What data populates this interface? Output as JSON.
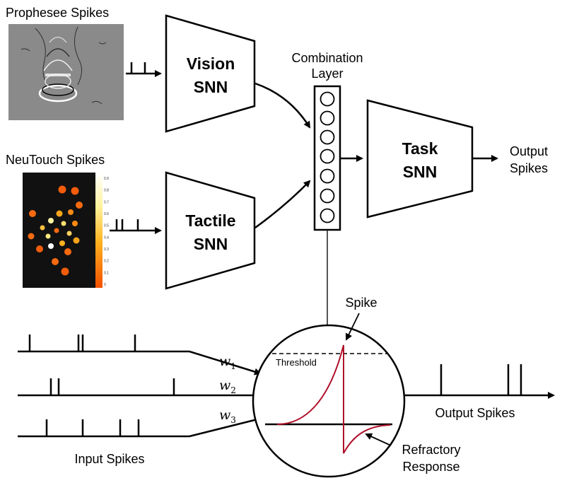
{
  "top": {
    "prophesee_label": "Prophesee Spikes",
    "neutouch_label": "NeuTouch Spikes",
    "vision_line1": "Vision",
    "vision_line2": "SNN",
    "tactile_line1": "Tactile",
    "tactile_line2": "SNN",
    "combination_line1": "Combination",
    "combination_line2": "Layer",
    "task_line1": "Task",
    "task_line2": "SNN",
    "output_line1": "Output",
    "output_line2": "Spikes"
  },
  "colorbar": {
    "ticks": [
      "0.9",
      "0.8",
      "0.7",
      "0.6",
      "0.5",
      "0.4",
      "0.3",
      "0.2",
      "0.1",
      "0"
    ]
  },
  "neuron": {
    "spike_label": "Spike",
    "threshold_label": "Threshold",
    "w1": "w",
    "w1_sub": "1",
    "w2": "w",
    "w2_sub": "2",
    "w3": "w",
    "w3_sub": "3",
    "input_spikes_label": "Input Spikes",
    "output_spikes_label": "Output Spikes",
    "refractory_line1": "Refractory",
    "refractory_line2": "Response"
  },
  "colors": {
    "membrane_curve": "#b0102a",
    "heatmap_background": "#111111",
    "event_background": "#8a8a8a"
  }
}
